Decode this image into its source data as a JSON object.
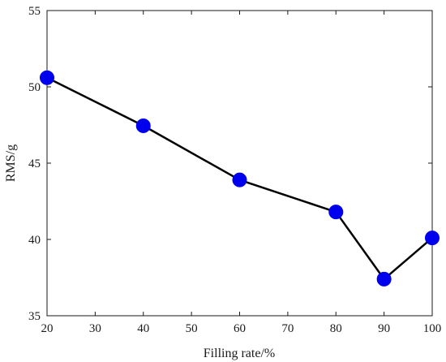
{
  "chart_data": {
    "type": "line",
    "title": "",
    "xlabel": "Filling rate/%",
    "ylabel": "RMS/g",
    "xlim": [
      20,
      100
    ],
    "ylim": [
      35,
      55
    ],
    "xticks": [
      20,
      30,
      40,
      50,
      60,
      70,
      80,
      90,
      100
    ],
    "yticks": [
      35,
      40,
      45,
      50,
      55
    ],
    "grid": false,
    "legend": "none",
    "series": [
      {
        "x": [
          20,
          40,
          60,
          80,
          90,
          100
        ],
        "y": [
          50.6,
          47.45,
          43.9,
          41.8,
          37.4,
          40.1
        ],
        "line_color": "#000000",
        "marker_color": "#0000ee",
        "marker": "circle"
      }
    ]
  }
}
